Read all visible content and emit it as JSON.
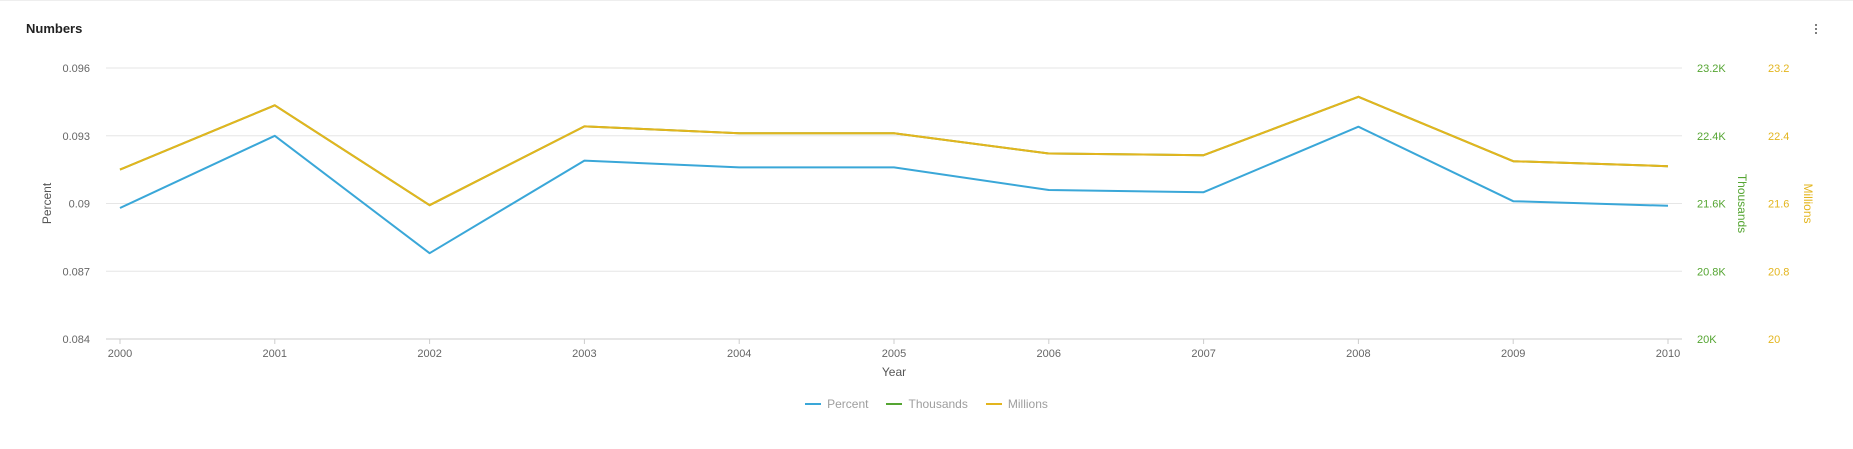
{
  "panel": {
    "title": "Numbers",
    "menu_icon": "more-vert-icon"
  },
  "colors": {
    "percent": "#3aa7d8",
    "thousands": "#55a532",
    "millions": "#e3b51e",
    "grid": "#e6e6e6",
    "tick_text": "#666666"
  },
  "chart_data": {
    "type": "line",
    "title": "Numbers",
    "xlabel": "Year",
    "categories": [
      "2000",
      "2001",
      "2002",
      "2003",
      "2004",
      "2005",
      "2006",
      "2007",
      "2008",
      "2009",
      "2010"
    ],
    "axes": {
      "left": {
        "label": "Percent",
        "min": 0.084,
        "max": 0.096,
        "ticks": [
          "0.084",
          "0.087",
          "0.09",
          "0.093",
          "0.096"
        ]
      },
      "right1": {
        "label": "Thousands",
        "min": 20000,
        "max": 23200,
        "ticks": [
          "20K",
          "20.8K",
          "21.6K",
          "22.4K",
          "23.2K"
        ]
      },
      "right2": {
        "label": "Millions",
        "min": 20,
        "max": 23.2,
        "ticks": [
          "20",
          "20.8",
          "21.6",
          "22.4",
          "23.2"
        ]
      }
    },
    "series": [
      {
        "name": "Percent",
        "axis": "left",
        "color": "#3aa7d8",
        "values": [
          0.0898,
          0.093,
          0.0878,
          0.0919,
          0.0916,
          0.0916,
          0.0906,
          0.0905,
          0.0934,
          0.0901,
          0.0899
        ]
      },
      {
        "name": "Thousands",
        "axis": "right1",
        "color": "#55a532",
        "values": [
          22000,
          22760,
          21580,
          22510,
          22430,
          22430,
          22190,
          22170,
          22860,
          22100,
          22040
        ]
      },
      {
        "name": "Millions",
        "axis": "right2",
        "color": "#e3b51e",
        "values": [
          22.0,
          22.76,
          21.58,
          22.51,
          22.43,
          22.43,
          22.19,
          22.17,
          22.86,
          22.1,
          22.04
        ]
      }
    ],
    "legend": [
      "Percent",
      "Thousands",
      "Millions"
    ],
    "legend_position": "bottom-center",
    "grid": true
  }
}
